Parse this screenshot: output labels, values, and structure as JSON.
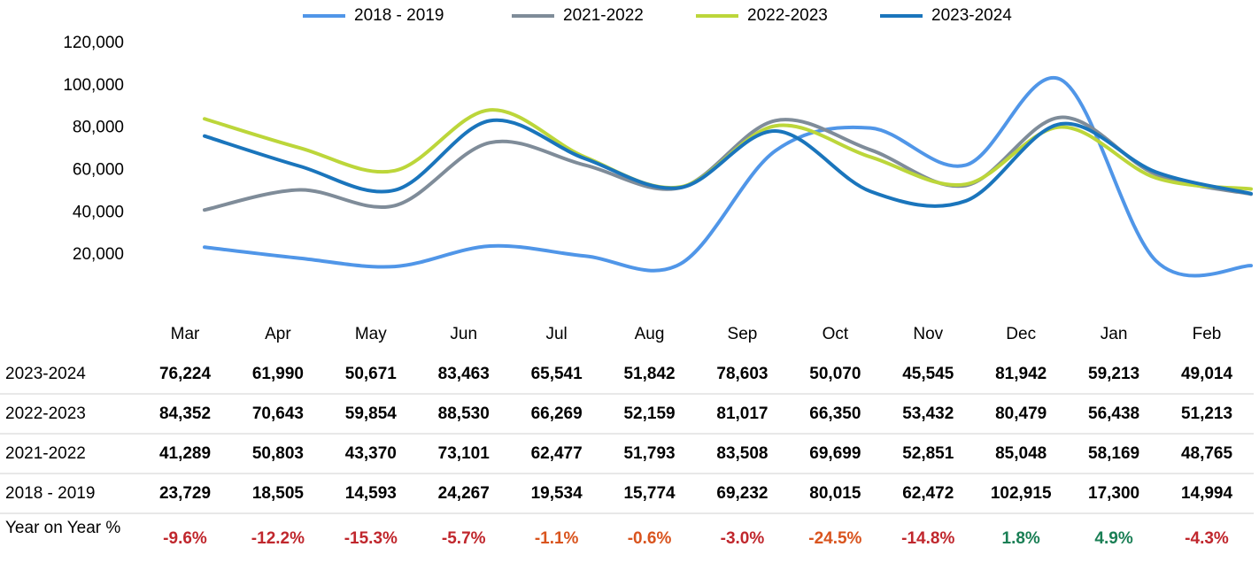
{
  "chart_data": {
    "type": "line",
    "categories": [
      "Mar",
      "Apr",
      "May",
      "Jun",
      "Jul",
      "Aug",
      "Sep",
      "Oct",
      "Nov",
      "Dec",
      "Jan",
      "Feb"
    ],
    "ylim": [
      0,
      120000
    ],
    "yticks": [
      {
        "value": 20000,
        "label": "20,000"
      },
      {
        "value": 40000,
        "label": "40,000"
      },
      {
        "value": 60000,
        "label": "60,000"
      },
      {
        "value": 80000,
        "label": "80,000"
      },
      {
        "value": 100000,
        "label": "100,000"
      },
      {
        "value": 120000,
        "label": "120,000"
      }
    ],
    "legend": "top",
    "series": [
      {
        "name": "2018 - 2019",
        "color": "#5096e8",
        "values": [
          23729,
          18505,
          14593,
          24267,
          19534,
          15774,
          69232,
          80015,
          62472,
          102915,
          17300,
          14994
        ],
        "value_labels": [
          "23,729",
          "18,505",
          "14,593",
          "24,267",
          "19,534",
          "15,774",
          "69,232",
          "80,015",
          "62,472",
          "102,915",
          "17,300",
          "14,994"
        ]
      },
      {
        "name": "2021-2022",
        "color": "#7f8c99",
        "values": [
          41289,
          50803,
          43370,
          73101,
          62477,
          51793,
          83508,
          69699,
          52851,
          85048,
          58169,
          48765
        ],
        "value_labels": [
          "41,289",
          "50,803",
          "43,370",
          "73,101",
          "62,477",
          "51,793",
          "83,508",
          "69,699",
          "52,851",
          "85,048",
          "58,169",
          "48,765"
        ]
      },
      {
        "name": "2022-2023",
        "color": "#bcd63a",
        "values": [
          84352,
          70643,
          59854,
          88530,
          66269,
          52159,
          81017,
          66350,
          53432,
          80479,
          56438,
          51213
        ],
        "value_labels": [
          "84,352",
          "70,643",
          "59,854",
          "88,530",
          "66,269",
          "52,159",
          "81,017",
          "66,350",
          "53,432",
          "80,479",
          "56,438",
          "51,213"
        ]
      },
      {
        "name": "2023-2024",
        "color": "#1a75bc",
        "values": [
          76224,
          61990,
          50671,
          83463,
          65541,
          51842,
          78603,
          50070,
          45545,
          81942,
          59213,
          49014
        ],
        "value_labels": [
          "76,224",
          "61,990",
          "50,671",
          "83,463",
          "65,541",
          "51,842",
          "78,603",
          "50,070",
          "45,545",
          "81,942",
          "59,213",
          "49,014"
        ]
      }
    ],
    "yoy": {
      "label": "Year on Year %",
      "values": [
        -9.6,
        -12.2,
        -15.3,
        -5.7,
        -1.1,
        -0.6,
        -3.0,
        -24.5,
        -14.8,
        1.8,
        4.9,
        -4.3
      ],
      "value_labels": [
        "-9.6%",
        "-12.2%",
        "-15.3%",
        "-5.7%",
        "-1.1%",
        "-0.6%",
        "-3.0%",
        "-24.5%",
        "-14.8%",
        "1.8%",
        "4.9%",
        "-4.3%"
      ],
      "colors": [
        "#c0272d",
        "#c0272d",
        "#c0272d",
        "#c0272d",
        "#d9541e",
        "#d9541e",
        "#c0272d",
        "#d9541e",
        "#c0272d",
        "#1a7f55",
        "#1a7f55",
        "#c0272d"
      ]
    }
  }
}
